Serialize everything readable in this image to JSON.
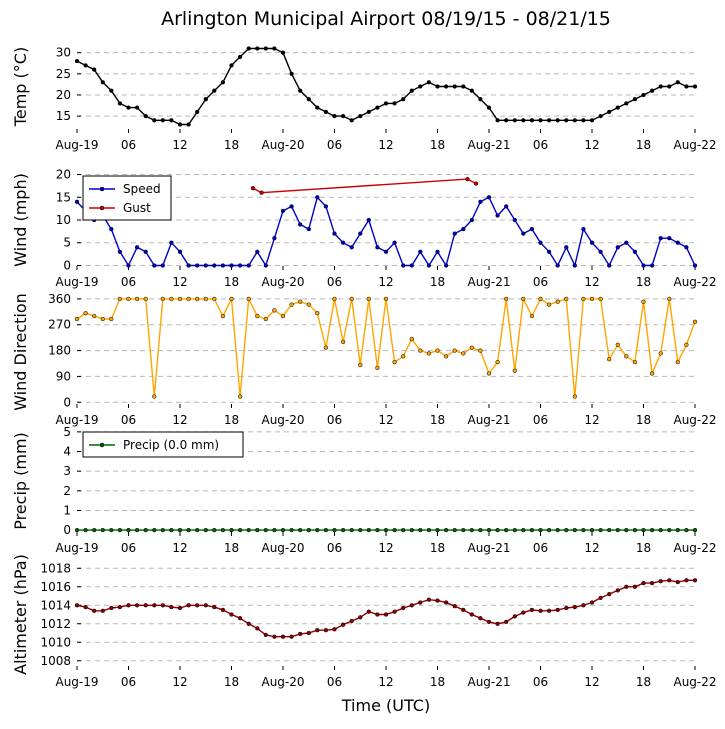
{
  "title": "Arlington Municipal Airport 08/19/15 - 08/21/15",
  "xlabel": "Time (UTC)",
  "x_ticks": [
    "Aug-19",
    "06",
    "12",
    "18",
    "Aug-20",
    "06",
    "12",
    "18",
    "Aug-21",
    "06",
    "12",
    "18",
    "Aug-22"
  ],
  "x_range_hours": [
    0,
    72
  ],
  "chart_data": [
    {
      "type": "line",
      "ylabel": "Temp (°C)",
      "ylim": [
        11,
        33
      ],
      "yticks": [
        15,
        20,
        25,
        30
      ],
      "grid": true,
      "series": [
        {
          "color": "#000000",
          "marker": true,
          "x": [
            0,
            1,
            2,
            3,
            4,
            5,
            6,
            7,
            8,
            9,
            10,
            11,
            12,
            13,
            14,
            15,
            16,
            17,
            18,
            19,
            20,
            21,
            22,
            23,
            24,
            25,
            26,
            27,
            28,
            29,
            30,
            31,
            32,
            33,
            34,
            35,
            36,
            37,
            38,
            39,
            40,
            41,
            42,
            43,
            44,
            45,
            46,
            47,
            48,
            49,
            50,
            51,
            52,
            53,
            54,
            55,
            56,
            57,
            58,
            59,
            60,
            61,
            62,
            63,
            64,
            65,
            66,
            67,
            68,
            69,
            70,
            71,
            72
          ],
          "y": [
            28,
            27,
            26,
            23,
            21,
            18,
            17,
            17,
            15,
            14,
            14,
            14,
            13,
            13,
            16,
            19,
            21,
            23,
            27,
            29,
            31,
            31,
            31,
            31,
            30,
            25,
            21,
            19,
            17,
            16,
            15,
            15,
            14,
            15,
            16,
            17,
            18,
            18,
            19,
            21,
            22,
            23,
            22,
            22,
            22,
            22,
            21,
            19,
            17,
            14,
            14,
            14,
            14,
            14,
            14,
            14,
            14,
            14,
            14,
            14,
            14,
            15,
            16,
            17,
            18,
            19,
            20,
            21,
            22,
            22,
            23,
            22,
            22
          ]
        }
      ]
    },
    {
      "type": "line",
      "ylabel": "Wind (mph)",
      "ylim": [
        -1,
        21
      ],
      "yticks": [
        0,
        5,
        10,
        15,
        20
      ],
      "grid": true,
      "legend": "top-left",
      "series": [
        {
          "name": "Speed",
          "color": "#0000cc",
          "marker": true,
          "x": [
            0,
            1,
            2,
            3,
            4,
            5,
            6,
            7,
            8,
            9,
            10,
            11,
            12,
            13,
            14,
            15,
            16,
            17,
            18,
            19,
            20,
            21,
            22,
            23,
            24,
            25,
            26,
            27,
            28,
            29,
            30,
            31,
            32,
            33,
            34,
            35,
            36,
            37,
            38,
            39,
            40,
            41,
            42,
            43,
            44,
            45,
            46,
            47,
            48,
            49,
            50,
            51,
            52,
            53,
            54,
            55,
            56,
            57,
            58,
            59,
            60,
            61,
            62,
            63,
            64,
            65,
            66,
            67,
            68,
            69,
            70,
            71,
            72
          ],
          "y": [
            14,
            12,
            10,
            11,
            8,
            3,
            0,
            4,
            3,
            0,
            0,
            5,
            3,
            0,
            0,
            0,
            0,
            0,
            0,
            0,
            0,
            3,
            0,
            6,
            12,
            13,
            9,
            8,
            15,
            13,
            7,
            5,
            4,
            7,
            10,
            4,
            3,
            5,
            0,
            0,
            3,
            0,
            3,
            0,
            7,
            8,
            10,
            14,
            15,
            11,
            13,
            10,
            7,
            8,
            5,
            3,
            0,
            4,
            0,
            8,
            5,
            3,
            0,
            4,
            5,
            3,
            0,
            0,
            6,
            6,
            5,
            4,
            0
          ]
        },
        {
          "name": "Gust",
          "color": "#cc0000",
          "marker": true,
          "x": [
            20.5,
            21.5,
            45.5,
            46.5
          ],
          "y": [
            17,
            16,
            19,
            18
          ]
        }
      ]
    },
    {
      "type": "line",
      "ylabel": "Wind Direction",
      "ylim": [
        -20,
        370
      ],
      "yticks": [
        0,
        90,
        180,
        270,
        360
      ],
      "grid": true,
      "series": [
        {
          "color": "#ffa500",
          "marker": true,
          "x": [
            0,
            1,
            2,
            3,
            4,
            5,
            6,
            7,
            8,
            9,
            10,
            11,
            12,
            13,
            14,
            15,
            16,
            17,
            18,
            19,
            20,
            21,
            22,
            23,
            24,
            25,
            26,
            27,
            28,
            29,
            30,
            31,
            32,
            33,
            34,
            35,
            36,
            37,
            38,
            39,
            40,
            41,
            42,
            43,
            44,
            45,
            46,
            47,
            48,
            49,
            50,
            51,
            52,
            53,
            54,
            55,
            56,
            57,
            58,
            59,
            60,
            61,
            62,
            63,
            64,
            65,
            66,
            67,
            68,
            69,
            70,
            71,
            72
          ],
          "y": [
            290,
            310,
            300,
            290,
            290,
            360,
            360,
            360,
            360,
            20,
            360,
            360,
            360,
            360,
            360,
            360,
            360,
            300,
            360,
            20,
            360,
            300,
            290,
            320,
            300,
            340,
            350,
            340,
            310,
            190,
            360,
            210,
            360,
            130,
            360,
            120,
            360,
            140,
            160,
            220,
            180,
            170,
            180,
            160,
            180,
            170,
            190,
            180,
            100,
            140,
            360,
            110,
            360,
            300,
            360,
            340,
            350,
            360,
            20,
            360,
            360,
            360,
            150,
            200,
            160,
            140,
            350,
            100,
            170,
            360,
            140,
            200,
            280
          ]
        }
      ]
    },
    {
      "type": "line",
      "ylabel": "Precip (mm)",
      "ylim": [
        -0.3,
        5.3
      ],
      "yticks": [
        0,
        1,
        2,
        3,
        4,
        5
      ],
      "grid": true,
      "legend": "top-left",
      "series": [
        {
          "name": "Precip (0.0 mm)",
          "color": "#006400",
          "marker": true,
          "x": [
            0,
            1,
            2,
            3,
            4,
            5,
            6,
            7,
            8,
            9,
            10,
            11,
            12,
            13,
            14,
            15,
            16,
            17,
            18,
            19,
            20,
            21,
            22,
            23,
            24,
            25,
            26,
            27,
            28,
            29,
            30,
            31,
            32,
            33,
            34,
            35,
            36,
            37,
            38,
            39,
            40,
            41,
            42,
            43,
            44,
            45,
            46,
            47,
            48,
            49,
            50,
            51,
            52,
            53,
            54,
            55,
            56,
            57,
            58,
            59,
            60,
            61,
            62,
            63,
            64,
            65,
            66,
            67,
            68,
            69,
            70,
            71,
            72
          ],
          "y": [
            0,
            0,
            0,
            0,
            0,
            0,
            0,
            0,
            0,
            0,
            0,
            0,
            0,
            0,
            0,
            0,
            0,
            0,
            0,
            0,
            0,
            0,
            0,
            0,
            0,
            0,
            0,
            0,
            0,
            0,
            0,
            0,
            0,
            0,
            0,
            0,
            0,
            0,
            0,
            0,
            0,
            0,
            0,
            0,
            0,
            0,
            0,
            0,
            0,
            0,
            0,
            0,
            0,
            0,
            0,
            0,
            0,
            0,
            0,
            0,
            0,
            0,
            0,
            0,
            0,
            0,
            0,
            0,
            0,
            0,
            0,
            0,
            0
          ]
        }
      ]
    },
    {
      "type": "line",
      "ylabel": "Altimeter (hPa)",
      "ylim": [
        1007,
        1019
      ],
      "yticks": [
        1008,
        1010,
        1012,
        1014,
        1016,
        1018
      ],
      "grid": true,
      "series": [
        {
          "color": "#8b0000",
          "marker": true,
          "x": [
            0,
            1,
            2,
            3,
            4,
            5,
            6,
            7,
            8,
            9,
            10,
            11,
            12,
            13,
            14,
            15,
            16,
            17,
            18,
            19,
            20,
            21,
            22,
            23,
            24,
            25,
            26,
            27,
            28,
            29,
            30,
            31,
            32,
            33,
            34,
            35,
            36,
            37,
            38,
            39,
            40,
            41,
            42,
            43,
            44,
            45,
            46,
            47,
            48,
            49,
            50,
            51,
            52,
            53,
            54,
            55,
            56,
            57,
            58,
            59,
            60,
            61,
            62,
            63,
            64,
            65,
            66,
            67,
            68,
            69,
            70,
            71,
            72
          ],
          "y": [
            1014,
            1013.8,
            1013.4,
            1013.4,
            1013.7,
            1013.8,
            1014,
            1014,
            1014,
            1014,
            1014,
            1013.8,
            1013.7,
            1014,
            1014,
            1014,
            1013.8,
            1013.5,
            1013,
            1012.6,
            1012,
            1011.5,
            1010.8,
            1010.6,
            1010.6,
            1010.6,
            1010.9,
            1011,
            1011.3,
            1011.3,
            1011.4,
            1011.9,
            1012.3,
            1012.7,
            1013.3,
            1013,
            1013,
            1013.3,
            1013.7,
            1014,
            1014.3,
            1014.6,
            1014.5,
            1014.3,
            1013.9,
            1013.5,
            1013,
            1012.6,
            1012.2,
            1012,
            1012.2,
            1012.8,
            1013.2,
            1013.5,
            1013.4,
            1013.4,
            1013.5,
            1013.7,
            1013.8,
            1014,
            1014.3,
            1014.8,
            1015.2,
            1015.6,
            1016,
            1016,
            1016.4,
            1016.4,
            1016.6,
            1016.7,
            1016.5,
            1016.7,
            1016.7
          ]
        }
      ]
    }
  ]
}
